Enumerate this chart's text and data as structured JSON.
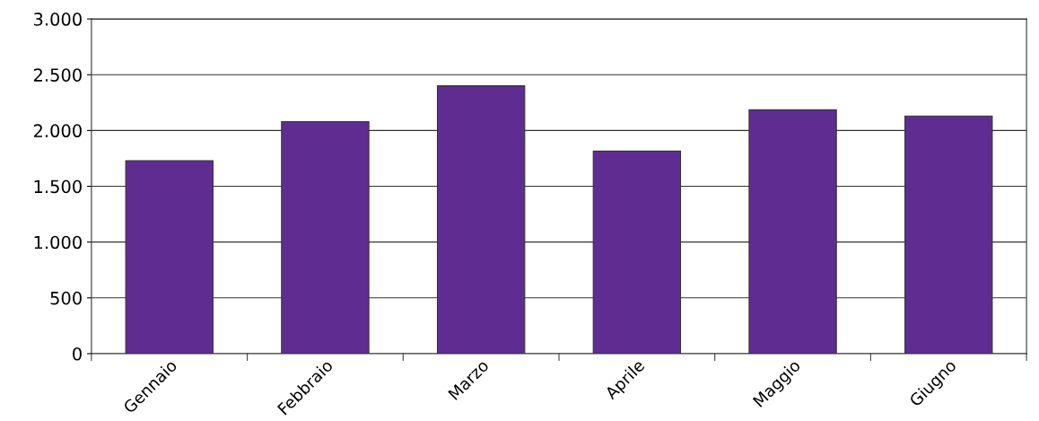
{
  "chart_data": {
    "type": "bar",
    "categories": [
      "Gennaio",
      "Febbraio",
      "Marzo",
      "Aprile",
      "Maggio",
      "Giugno"
    ],
    "values": [
      1730,
      2080,
      2400,
      1815,
      2185,
      2130
    ],
    "color": "#5f2d91",
    "ylim": [
      0,
      3000
    ],
    "yticks": [
      0,
      {
        "value": 500,
        "label": "500"
      },
      {
        "value": 1000,
        "label": "1.000"
      },
      {
        "value": 1500,
        "label": "1.500"
      },
      {
        "value": 2000,
        "label": "2.000"
      },
      {
        "value": 2500,
        "label": "2.500"
      },
      {
        "value": 3000,
        "label": "3.000"
      }
    ],
    "grid": "y",
    "legend": false
  }
}
